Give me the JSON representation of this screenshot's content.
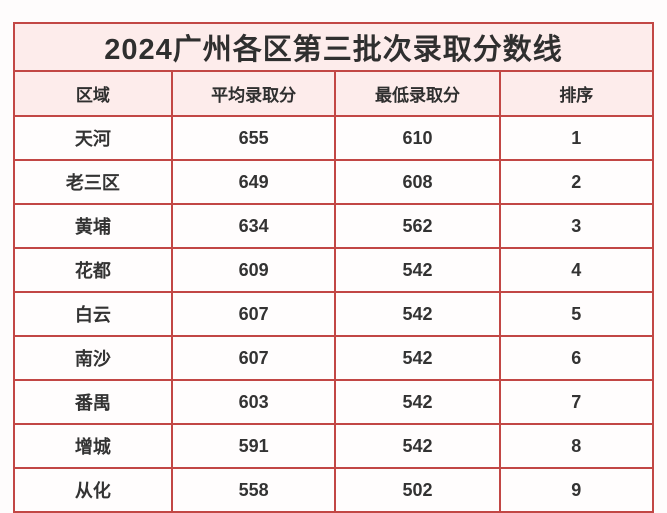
{
  "page": {
    "background": "#fefcfc",
    "border_color": "#c24745",
    "header_bg": "#fdeceb",
    "row_bg": "#fffdfd",
    "text_color": "#2f2f2f"
  },
  "table": {
    "title": "2024广州各区第三批次录取分数线",
    "columns": [
      "区域",
      "平均录取分",
      "最低录取分",
      "排序"
    ],
    "rows": [
      [
        "天河",
        "655",
        "610",
        "1"
      ],
      [
        "老三区",
        "649",
        "608",
        "2"
      ],
      [
        "黄埔",
        "634",
        "562",
        "3"
      ],
      [
        "花都",
        "609",
        "542",
        "4"
      ],
      [
        "白云",
        "607",
        "542",
        "5"
      ],
      [
        "南沙",
        "607",
        "542",
        "6"
      ],
      [
        "番禺",
        "603",
        "542",
        "7"
      ],
      [
        "增城",
        "591",
        "542",
        "8"
      ],
      [
        "从化",
        "558",
        "502",
        "9"
      ]
    ]
  },
  "chart_data": {
    "type": "table",
    "title": "2024广州各区第三批次录取分数线",
    "columns": [
      "区域",
      "平均录取分",
      "最低录取分",
      "排序"
    ],
    "rows": [
      [
        "天河",
        655,
        610,
        1
      ],
      [
        "老三区",
        649,
        608,
        2
      ],
      [
        "黄埔",
        634,
        562,
        3
      ],
      [
        "花都",
        609,
        542,
        4
      ],
      [
        "白云",
        607,
        542,
        5
      ],
      [
        "南沙",
        607,
        542,
        6
      ],
      [
        "番禺",
        603,
        542,
        7
      ],
      [
        "增城",
        591,
        542,
        8
      ],
      [
        "从化",
        558,
        502,
        9
      ]
    ],
    "layout": {
      "header_rows": [
        "title",
        "column-headers"
      ],
      "grid": true,
      "accent_color": "#c24745"
    }
  }
}
